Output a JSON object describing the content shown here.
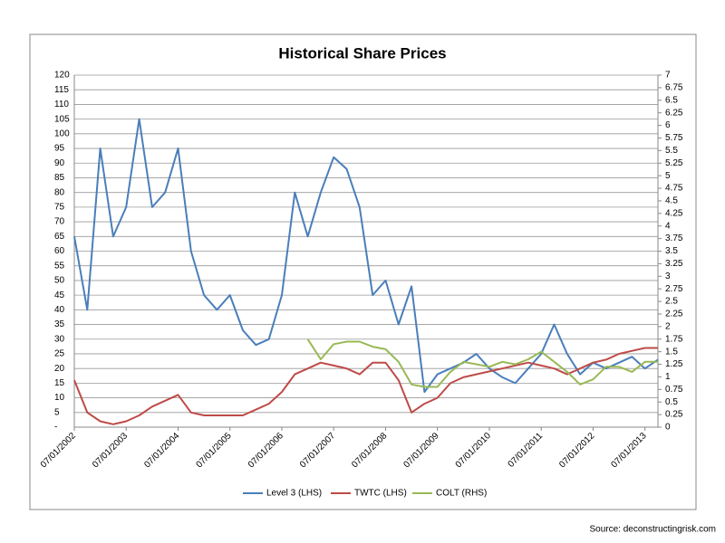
{
  "chart_data": {
    "type": "line",
    "title": "Historical Share Prices",
    "source": "Source: deconstructingrisk.com",
    "x": [
      "07/01/2002",
      "10/01/2002",
      "01/01/2003",
      "04/01/2003",
      "07/01/2003",
      "10/01/2003",
      "01/01/2004",
      "04/01/2004",
      "07/01/2004",
      "10/01/2004",
      "01/01/2005",
      "04/01/2005",
      "07/01/2005",
      "10/01/2005",
      "01/01/2006",
      "04/01/2006",
      "07/01/2006",
      "10/01/2006",
      "01/01/2007",
      "04/01/2007",
      "07/01/2007",
      "10/01/2007",
      "01/01/2008",
      "04/01/2008",
      "07/01/2008",
      "10/01/2008",
      "01/01/2009",
      "04/01/2009",
      "07/01/2009",
      "10/01/2009",
      "01/01/2010",
      "04/01/2010",
      "07/01/2010",
      "10/01/2010",
      "01/01/2011",
      "04/01/2011",
      "07/01/2011",
      "10/01/2011",
      "01/01/2012",
      "04/01/2012",
      "07/01/2012",
      "10/01/2012",
      "01/01/2013",
      "04/01/2013",
      "07/01/2013",
      "10/01/2013"
    ],
    "xlim": [
      "07/01/2002",
      "10/01/2013"
    ],
    "xticks": [
      "07/01/2002",
      "07/01/2003",
      "07/01/2004",
      "07/01/2005",
      "07/01/2006",
      "07/01/2007",
      "07/01/2008",
      "07/01/2009",
      "07/01/2010",
      "07/01/2011",
      "07/01/2012",
      "07/01/2013"
    ],
    "ylim": [
      0,
      120
    ],
    "yticks": [
      {
        "value": 0,
        "label": "-"
      },
      5,
      10,
      15,
      20,
      25,
      30,
      35,
      40,
      45,
      50,
      55,
      60,
      65,
      70,
      75,
      80,
      85,
      90,
      95,
      100,
      105,
      110,
      115,
      120
    ],
    "y2lim": [
      0,
      7
    ],
    "y2ticks": [
      0,
      0.25,
      0.5,
      0.75,
      1,
      1.25,
      1.5,
      1.75,
      2,
      2.25,
      2.5,
      2.75,
      3,
      3.25,
      3.5,
      3.75,
      4,
      4.25,
      4.5,
      4.75,
      5,
      5.25,
      5.5,
      5.75,
      6,
      6.25,
      6.5,
      6.75,
      7
    ],
    "grid": true,
    "legend": "bottom",
    "series": [
      {
        "name": "Level 3 (LHS)",
        "color": "#4a7ebb",
        "values": [
          65,
          40,
          95,
          65,
          75,
          105,
          75,
          80,
          95,
          60,
          45,
          40,
          45,
          33,
          28,
          30,
          45,
          80,
          65,
          80,
          92,
          88,
          75,
          45,
          50,
          35,
          48,
          12,
          18,
          20,
          22,
          25,
          20,
          17,
          15,
          20,
          25,
          35,
          25,
          18,
          22,
          20,
          22,
          24,
          20,
          23
        ]
      },
      {
        "name": "TWTC (LHS)",
        "color": "#be4b48",
        "values": [
          16,
          5,
          2,
          1,
          2,
          4,
          7,
          9,
          11,
          5,
          4,
          4,
          4,
          4,
          6,
          8,
          12,
          18,
          20,
          22,
          21,
          20,
          18,
          22,
          22,
          16,
          5,
          8,
          10,
          15,
          17,
          18,
          19,
          20,
          21,
          22,
          21,
          20,
          18,
          20,
          22,
          23,
          25,
          26,
          27,
          27
        ]
      },
      {
        "name": "COLT (RHS)",
        "color": "#98b954",
        "axis": "y2",
        "values": [
          null,
          null,
          null,
          null,
          null,
          null,
          null,
          null,
          null,
          null,
          null,
          null,
          null,
          null,
          null,
          null,
          null,
          null,
          1.75,
          1.35,
          1.65,
          1.7,
          1.7,
          1.6,
          1.55,
          1.3,
          0.85,
          0.8,
          0.8,
          1.1,
          1.3,
          1.25,
          1.2,
          1.3,
          1.25,
          1.35,
          1.5,
          1.3,
          1.1,
          0.85,
          0.95,
          1.2,
          1.2,
          1.1,
          1.3,
          1.3
        ]
      }
    ]
  }
}
